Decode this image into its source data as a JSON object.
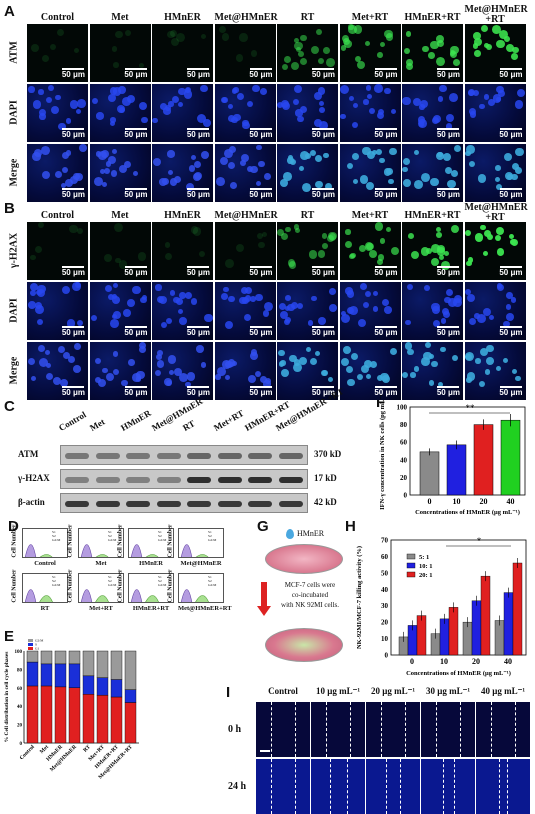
{
  "panels": {
    "A": "A",
    "B": "B",
    "C": "C",
    "D": "D",
    "E": "E",
    "F": "F",
    "G": "G",
    "H": "H",
    "I": "I"
  },
  "groups_ab": [
    "Control",
    "Met",
    "HMnER",
    "Met@HMnER",
    "RT",
    "Met+RT",
    "HMnER+RT",
    "Met@HMnER\n+RT"
  ],
  "rows_a": [
    "ATM",
    "DAPI",
    "Merge"
  ],
  "rows_b": [
    "γ-H2AX",
    "DAPI",
    "Merge"
  ],
  "scalebar": "50 μm",
  "western": {
    "lanes": [
      "Control",
      "Met",
      "HMnER",
      "Met@HMnER",
      "RT",
      "Met+RT",
      "HMnER+RT",
      "Met@HMnER\n+RT"
    ],
    "bands": [
      {
        "name": "ATM",
        "size": "370 kD"
      },
      {
        "name": "γ-H2AX",
        "size": "17 kD"
      },
      {
        "name": "β-actin",
        "size": "42 kD"
      }
    ]
  },
  "flow": {
    "ylabel": "Cell Number",
    "legend": [
      "S1",
      "S2",
      "G2/M"
    ],
    "titles": [
      "Control",
      "Met",
      "HMnER",
      "Met@HMnER",
      "RT",
      "Met+RT",
      "HMnER+RT",
      "Met@HMnER+RT"
    ]
  },
  "chart_data": [
    {
      "panel": "E",
      "type": "bar",
      "ylabel": "% Cell distribution in cell cycle phases",
      "categories": [
        "Control",
        "Met",
        "HMnER",
        "Met@HMnER",
        "RT",
        "Met+RT",
        "HMnER+RT",
        "Met@HMnER+RT"
      ],
      "ylim": [
        0,
        100
      ],
      "yticks": [
        "0",
        "20",
        "40",
        "60",
        "80",
        "100"
      ],
      "legend": [
        "G2/M",
        "S",
        "G1"
      ],
      "series": [
        {
          "name": "G1",
          "color": "#e02020",
          "values": [
            62,
            62,
            61,
            60,
            53,
            52,
            50,
            44
          ]
        },
        {
          "name": "S",
          "color": "#1a2fd8",
          "values": [
            26,
            24,
            25,
            26,
            20,
            19,
            19,
            14
          ]
        },
        {
          "name": "G2/M",
          "color": "#9a9a9a",
          "values": [
            12,
            14,
            14,
            14,
            27,
            29,
            31,
            42
          ]
        }
      ]
    },
    {
      "panel": "F",
      "type": "bar",
      "xlabel": "Concentrations of HMnER (μg mL⁻¹)",
      "ylabel": "IFN-γ concentration in NK cells (pg mL⁻¹)",
      "categories": [
        "0",
        "10",
        "20",
        "40"
      ],
      "values": [
        49,
        57,
        80,
        85
      ],
      "errors": [
        4,
        5,
        6,
        7
      ],
      "colors": [
        "#8a8a8a",
        "#2020e0",
        "#e02020",
        "#20d020"
      ],
      "ylim": [
        0,
        100
      ],
      "yticks": [
        "0",
        "20",
        "40",
        "60",
        "80",
        "100"
      ],
      "annotation": "**"
    },
    {
      "panel": "H",
      "type": "bar",
      "xlabel": "Concentrations of HMnER (μg mL⁻¹)",
      "ylabel": "NK-92MI/MCF-7 killing activity (%)",
      "categories": [
        "0",
        "10",
        "20",
        "40"
      ],
      "ylim": [
        0,
        70
      ],
      "yticks": [
        "0",
        "10",
        "20",
        "30",
        "40",
        "50",
        "60",
        "70"
      ],
      "annotation": "*",
      "series": [
        {
          "name": "5: 1",
          "color": "#8a8a8a",
          "values": [
            11,
            13,
            20,
            21
          ]
        },
        {
          "name": "10: 1",
          "color": "#2020e0",
          "values": [
            18,
            22,
            33,
            38
          ]
        },
        {
          "name": "20: 1",
          "color": "#e02020",
          "values": [
            24,
            29,
            48,
            56
          ]
        }
      ]
    }
  ],
  "schematic": {
    "label_top": "HMnER",
    "text": [
      "MCF-7 cells were",
      "co-incubated",
      "with NK 92MI cells."
    ]
  },
  "scratch": {
    "columns": [
      "Control",
      "10 μg mL⁻¹",
      "20 μg mL⁻¹",
      "30 μg mL⁻¹",
      "40 μg mL⁻¹"
    ],
    "rows": [
      "0 h",
      "24 h"
    ]
  }
}
